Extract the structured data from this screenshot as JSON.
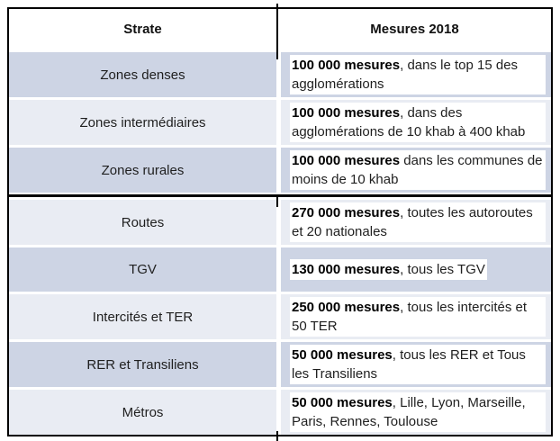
{
  "table": {
    "header": {
      "col1": "Strate",
      "col2": "Mesures 2018"
    },
    "rows": [
      {
        "strate": "Zones denses",
        "mesure_bold": "100 000 mesures",
        "mesure_rest": ", dans le top 15 des agglomérations"
      },
      {
        "strate": "Zones intermédiaires",
        "mesure_bold": "100 000 mesures",
        "mesure_rest": ", dans des agglomérations de 10 khab à 400 khab"
      },
      {
        "strate": "Zones rurales",
        "mesure_bold": "100 000 mesures",
        "mesure_rest": " dans les communes de moins de 10 khab"
      },
      {
        "strate": "Routes",
        "mesure_bold": "270 000 mesures",
        "mesure_rest": ", toutes les autoroutes et 20 nationales"
      },
      {
        "strate": "TGV",
        "mesure_bold": "130 000 mesures",
        "mesure_rest": ", tous les TGV"
      },
      {
        "strate": "Intercités et TER",
        "mesure_bold": "250 000 mesures",
        "mesure_rest": ", tous les intercités et 50 TER"
      },
      {
        "strate": "RER et Transiliens",
        "mesure_bold": "50 000 mesures",
        "mesure_rest": ", tous les RER et Tous les Transiliens"
      },
      {
        "strate": "Métros",
        "mesure_bold": "50 000 mesures",
        "mesure_rest": ", Lille, Lyon, Marseille, Paris, Rennes, Toulouse"
      }
    ],
    "colors": {
      "row_dark": "#cdd4e4",
      "row_light": "#e9ecf3",
      "border": "#000000",
      "highlight": "#ffffff"
    }
  }
}
